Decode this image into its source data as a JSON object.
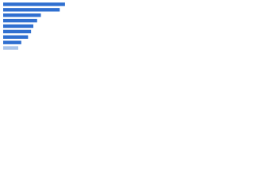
{
  "chart_data": {
    "type": "bar",
    "orientation": "horizontal",
    "categories": [
      null,
      null,
      null,
      null,
      null,
      null,
      null,
      null,
      null
    ],
    "values": [
      82,
      75,
      50,
      45,
      40,
      37,
      33,
      24,
      20
    ],
    "colors": [
      "#2f6fd0",
      "#2f6fd0",
      "#2f6fd0",
      "#2f6fd0",
      "#2f6fd0",
      "#2f6fd0",
      "#2f6fd0",
      "#2f6fd0",
      "#a9c4ea"
    ],
    "xlim": [
      0,
      100
    ]
  }
}
